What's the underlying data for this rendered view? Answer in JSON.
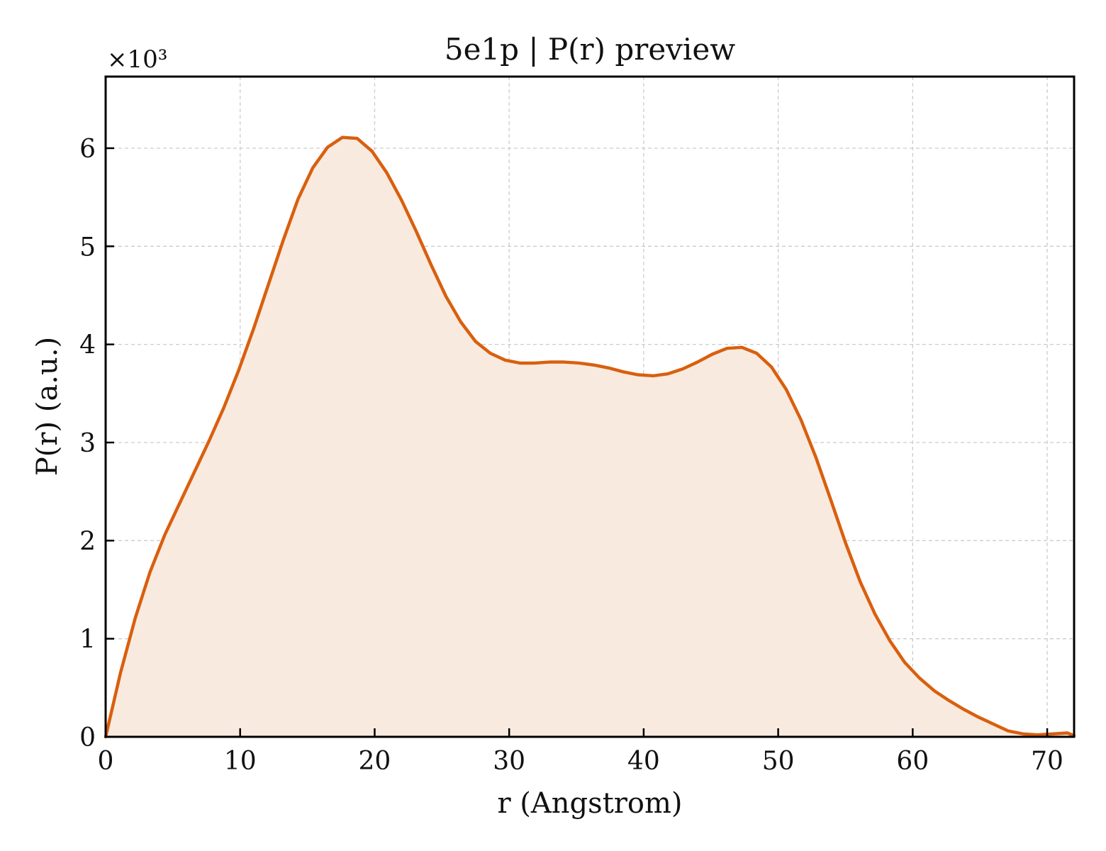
{
  "chart_data": {
    "type": "area",
    "title": "5e1p | P(r) preview",
    "xlabel": "r (Angstrom)",
    "ylabel": "P(r) (a.u.)",
    "y_multiplier_label": "×10³",
    "y_scale_factor": 1000,
    "xlim": [
      0,
      72
    ],
    "ylim": [
      0,
      6730
    ],
    "x_ticks": [
      0,
      10,
      20,
      30,
      40,
      50,
      60,
      70
    ],
    "y_ticks": [
      0,
      1000,
      2000,
      3000,
      4000,
      5000,
      6000
    ],
    "x_tick_labels": [
      "0",
      "10",
      "20",
      "30",
      "40",
      "50",
      "60",
      "70"
    ],
    "y_tick_labels": [
      "0",
      "1",
      "2",
      "3",
      "4",
      "5",
      "6"
    ],
    "grid": true,
    "line_color": "#d95f0e",
    "fill_color": "#f9eadf",
    "series": [
      {
        "x": [
          0,
          1.1,
          2.2,
          3.3,
          4.4,
          5.5,
          6.6,
          7.7,
          8.8,
          9.9,
          11.0,
          12.1,
          13.2,
          14.3,
          15.4,
          16.5,
          17.6,
          18.7,
          19.8,
          20.9,
          22.0,
          23.1,
          24.2,
          25.3,
          26.4,
          27.5,
          28.6,
          29.7,
          30.8,
          31.9,
          33.0,
          34.1,
          35.2,
          36.3,
          37.4,
          38.5,
          39.6,
          40.7,
          41.8,
          42.9,
          44.0,
          45.1,
          46.2,
          47.3,
          48.4,
          49.5,
          50.6,
          51.7,
          52.8,
          53.9,
          55.0,
          56.1,
          57.2,
          58.3,
          59.4,
          60.5,
          61.6,
          62.7,
          63.8,
          64.9,
          66.0,
          67.1,
          68.2,
          69.3,
          70.4,
          71.5,
          72.0
        ],
        "y": [
          0,
          650,
          1210,
          1680,
          2060,
          2380,
          2700,
          3020,
          3360,
          3740,
          4160,
          4610,
          5060,
          5480,
          5800,
          6010,
          6110,
          6100,
          5970,
          5750,
          5470,
          5150,
          4810,
          4490,
          4230,
          4030,
          3910,
          3840,
          3810,
          3810,
          3820,
          3820,
          3810,
          3790,
          3760,
          3720,
          3690,
          3680,
          3700,
          3750,
          3820,
          3900,
          3960,
          3970,
          3910,
          3770,
          3540,
          3230,
          2850,
          2420,
          1980,
          1580,
          1250,
          980,
          760,
          600,
          470,
          370,
          280,
          200,
          130,
          60,
          30,
          20,
          30,
          40,
          10
        ]
      }
    ]
  }
}
